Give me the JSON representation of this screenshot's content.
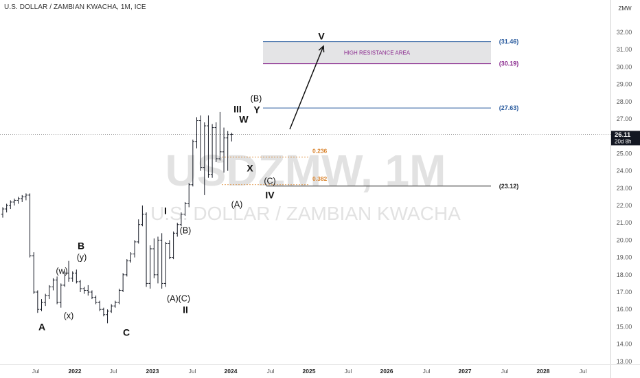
{
  "header": {
    "title": "U.S. DOLLAR / ZAMBIAN KWACHA, 1M, ICE"
  },
  "watermark": {
    "symbol": "USDZMW, 1M",
    "name": "U.S. DOLLAR / ZAMBIAN KWACHA"
  },
  "axis": {
    "currency": "ZMW",
    "price_labels": [
      "32.00",
      "31.00",
      "30.00",
      "29.00",
      "28.00",
      "27.00",
      "26.00",
      "25.00",
      "24.00",
      "23.00",
      "22.00",
      "21.00",
      "20.00",
      "19.00",
      "18.00",
      "17.00",
      "16.00",
      "15.00",
      "14.00",
      "13.00"
    ],
    "time_labels": [
      {
        "text": "Jul",
        "bold": false
      },
      {
        "text": "2022",
        "bold": true
      },
      {
        "text": "Jul",
        "bold": false
      },
      {
        "text": "2023",
        "bold": true
      },
      {
        "text": "Jul",
        "bold": false
      },
      {
        "text": "2024",
        "bold": true
      },
      {
        "text": "Jul",
        "bold": false
      },
      {
        "text": "2025",
        "bold": true
      },
      {
        "text": "Jul",
        "bold": false
      },
      {
        "text": "2026",
        "bold": true
      },
      {
        "text": "Jul",
        "bold": false
      },
      {
        "text": "2027",
        "bold": true
      },
      {
        "text": "Jul",
        "bold": false
      },
      {
        "text": "2028",
        "bold": true
      },
      {
        "text": "Jul",
        "bold": false
      }
    ]
  },
  "price_tag": {
    "value": "26.11",
    "countdown": "20d 8h",
    "price": 26.11
  },
  "levels": [
    {
      "value": 31.46,
      "label": "(31.46)",
      "color": "#2a5b9e"
    },
    {
      "value": 30.19,
      "label": "(30.19)",
      "color": "#8b2c8f"
    },
    {
      "value": 27.63,
      "label": "(27.63)",
      "color": "#2a5b9e"
    },
    {
      "value": 23.12,
      "label": "(23.12)",
      "color": "#222222"
    }
  ],
  "resistance_zone": {
    "label": "HIGH RESISTANCE AREA",
    "top": 31.46,
    "bottom": 30.19
  },
  "fib_levels": [
    {
      "label": "0.236",
      "value": 24.8
    },
    {
      "label": "0.382",
      "value": 23.2
    }
  ],
  "wave_labels": [
    {
      "text": "A",
      "size": "big"
    },
    {
      "text": "(w)",
      "size": "small"
    },
    {
      "text": "(x)",
      "size": "small"
    },
    {
      "text": "(y)",
      "size": "small"
    },
    {
      "text": "B",
      "size": "big"
    },
    {
      "text": "C",
      "size": "big"
    },
    {
      "text": "I",
      "size": "big"
    },
    {
      "text": "(A)(C)",
      "size": "small"
    },
    {
      "text": "(B)",
      "size": "small"
    },
    {
      "text": "II",
      "size": "big"
    },
    {
      "text": "III",
      "size": "big"
    },
    {
      "text": "W",
      "size": "big"
    },
    {
      "text": "X",
      "size": "big"
    },
    {
      "text": "(A)",
      "size": "small"
    },
    {
      "text": "(B)",
      "size": "small"
    },
    {
      "text": "Y",
      "size": "big"
    },
    {
      "text": "(C)",
      "size": "small"
    },
    {
      "text": "IV",
      "size": "big"
    },
    {
      "text": "V",
      "size": "big"
    }
  ],
  "chart_data": {
    "type": "ohlc",
    "symbol": "USDZMW",
    "interval": "1M",
    "ylim": [
      12.6,
      33.3
    ],
    "projection_arrow": {
      "from_price": 26.4,
      "to_price": 31.2
    },
    "bars": [
      [
        21.5,
        21.9,
        21.3,
        21.8
      ],
      [
        21.8,
        22.1,
        21.6,
        22.0
      ],
      [
        22.0,
        22.3,
        21.8,
        22.2
      ],
      [
        22.2,
        22.4,
        22.0,
        22.3
      ],
      [
        22.3,
        22.5,
        22.1,
        22.4
      ],
      [
        22.4,
        22.6,
        22.2,
        22.5
      ],
      [
        22.5,
        22.7,
        22.3,
        22.6
      ],
      [
        22.6,
        22.7,
        19.0,
        19.1
      ],
      [
        19.1,
        19.3,
        16.9,
        17.0
      ],
      [
        17.0,
        17.1,
        15.8,
        16.0
      ],
      [
        16.0,
        16.6,
        15.9,
        16.4
      ],
      [
        16.4,
        16.9,
        16.2,
        16.8
      ],
      [
        16.8,
        17.4,
        16.6,
        17.3
      ],
      [
        17.3,
        17.8,
        17.1,
        17.7
      ],
      [
        17.7,
        17.9,
        16.3,
        16.4
      ],
      [
        16.4,
        17.5,
        16.1,
        17.4
      ],
      [
        17.4,
        18.2,
        17.3,
        18.1
      ],
      [
        18.1,
        18.8,
        17.6,
        17.8
      ],
      [
        17.8,
        18.2,
        17.6,
        18.1
      ],
      [
        18.1,
        18.3,
        17.5,
        17.6
      ],
      [
        17.6,
        17.7,
        17.0,
        17.2
      ],
      [
        17.2,
        17.3,
        16.9,
        17.1
      ],
      [
        17.1,
        17.4,
        16.8,
        17.0
      ],
      [
        17.0,
        17.1,
        16.6,
        16.7
      ],
      [
        16.7,
        16.8,
        16.3,
        16.4
      ],
      [
        16.4,
        16.5,
        15.9,
        16.0
      ],
      [
        16.0,
        16.1,
        15.6,
        15.7
      ],
      [
        15.7,
        16.0,
        15.2,
        15.9
      ],
      [
        15.9,
        16.3,
        15.8,
        16.2
      ],
      [
        16.2,
        16.5,
        16.1,
        16.4
      ],
      [
        16.4,
        17.2,
        16.3,
        17.1
      ],
      [
        17.1,
        18.1,
        17.0,
        18.0
      ],
      [
        18.0,
        18.9,
        17.9,
        18.8
      ],
      [
        18.8,
        19.3,
        18.7,
        19.2
      ],
      [
        19.2,
        20.0,
        19.0,
        19.9
      ],
      [
        19.9,
        21.2,
        19.8,
        20.9
      ],
      [
        20.9,
        22.0,
        20.8,
        21.5
      ],
      [
        21.5,
        21.6,
        17.3,
        17.5
      ],
      [
        17.5,
        19.7,
        17.2,
        19.5
      ],
      [
        19.5,
        20.1,
        17.8,
        18.0
      ],
      [
        18.0,
        20.2,
        17.5,
        20.0
      ],
      [
        20.0,
        20.4,
        17.2,
        17.5
      ],
      [
        17.5,
        19.9,
        17.3,
        19.8
      ],
      [
        19.8,
        20.0,
        18.9,
        19.0
      ],
      [
        19.0,
        20.5,
        18.9,
        20.4
      ],
      [
        20.4,
        21.0,
        20.2,
        20.9
      ],
      [
        20.9,
        21.6,
        20.8,
        21.5
      ],
      [
        21.5,
        22.2,
        21.4,
        22.1
      ],
      [
        22.1,
        23.3,
        21.9,
        23.2
      ],
      [
        23.2,
        25.8,
        23.1,
        25.7
      ],
      [
        25.7,
        27.1,
        25.3,
        26.9
      ],
      [
        26.9,
        27.2,
        24.0,
        24.2
      ],
      [
        24.2,
        26.8,
        22.6,
        26.6
      ],
      [
        26.6,
        27.2,
        23.6,
        23.8
      ],
      [
        23.8,
        26.7,
        23.6,
        26.5
      ],
      [
        26.5,
        26.8,
        24.5,
        24.7
      ],
      [
        24.7,
        27.4,
        24.6,
        25.1
      ],
      [
        25.1,
        26.5,
        23.9,
        25.9
      ],
      [
        25.9,
        26.3,
        24.0,
        26.1
      ],
      [
        26.1,
        26.2,
        25.7,
        26.11
      ]
    ]
  }
}
